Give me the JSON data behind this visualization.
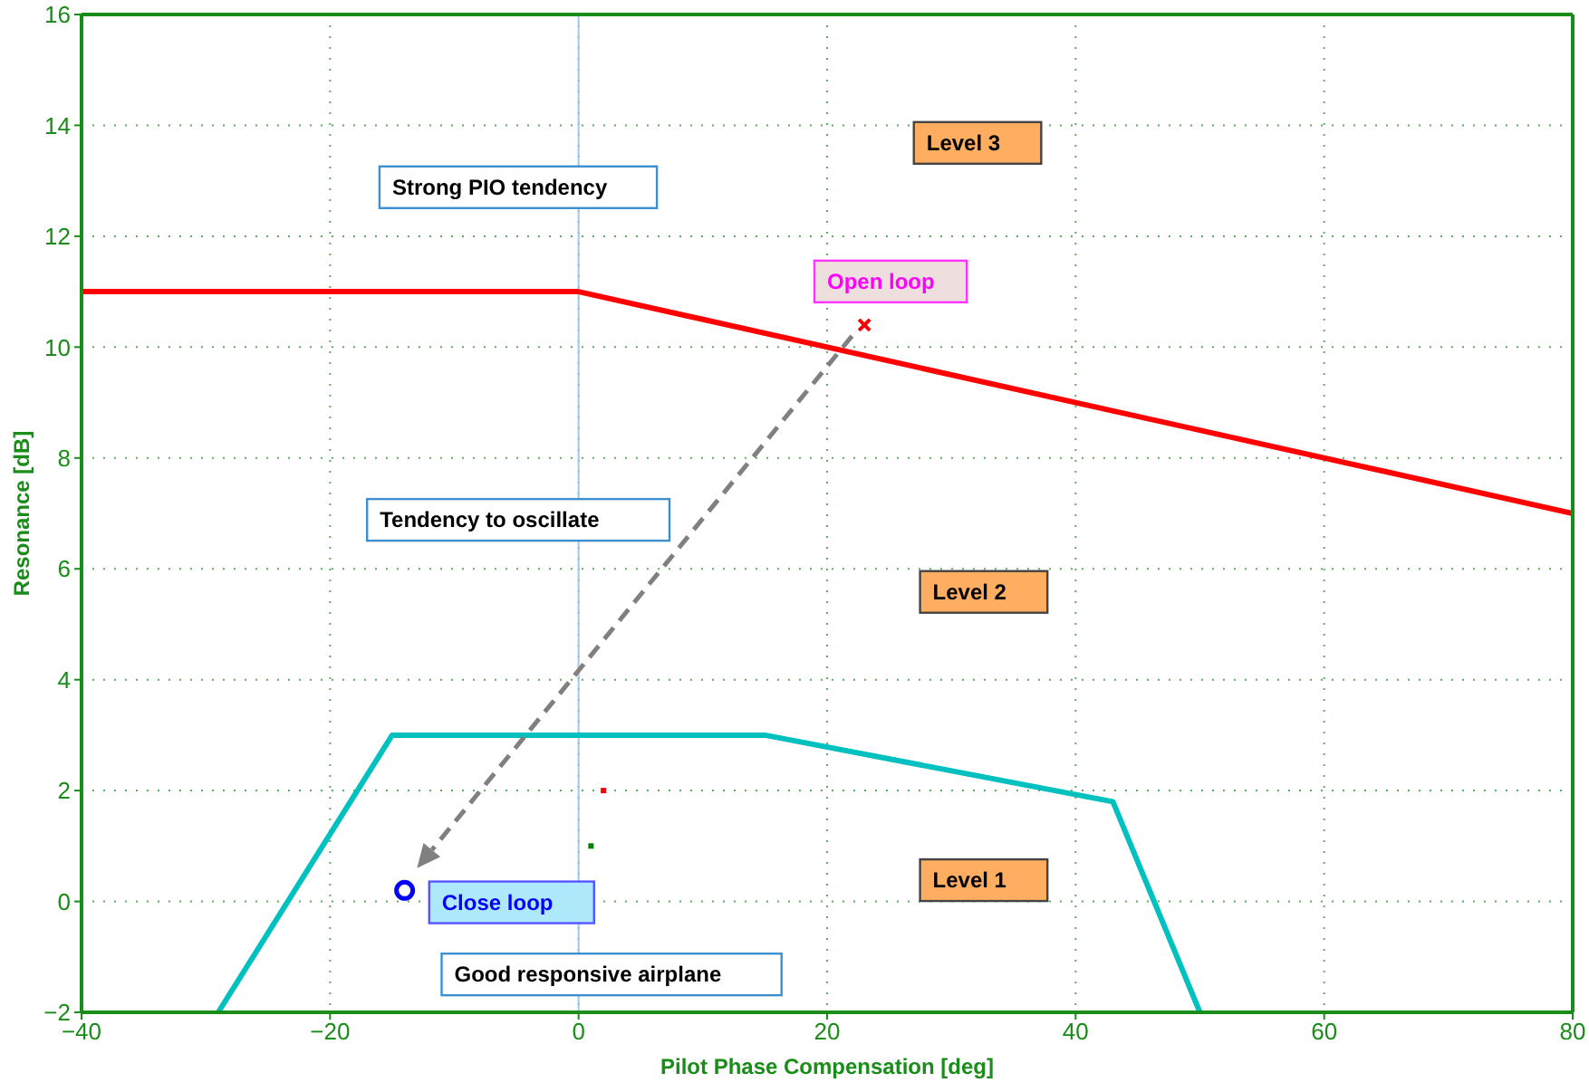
{
  "chart_data": {
    "type": "line",
    "xlabel": "Pilot Phase Compensation [deg]",
    "ylabel": "Resonance [dB]",
    "xlim": [
      -40,
      80
    ],
    "xticks": [
      -40,
      -20,
      0,
      20,
      40,
      60,
      80
    ],
    "ylim": [
      -2,
      16
    ],
    "yticks": [
      -2,
      0,
      2,
      4,
      6,
      8,
      10,
      12,
      14,
      16
    ],
    "grid": true,
    "series": [
      {
        "color": "#ff0000",
        "x": [
          -40,
          0,
          80
        ],
        "values": [
          11,
          11,
          7
        ],
        "marker": "none",
        "line_style": "solid"
      },
      {
        "color": "#00c0c0",
        "x": [
          -29,
          -15,
          15,
          43,
          50
        ],
        "values": [
          -2,
          3,
          3,
          1.8,
          -2
        ],
        "marker": "none",
        "line_style": "solid"
      },
      {
        "type": "scatter",
        "color": "#ff0000",
        "x": [
          23
        ],
        "values": [
          10.4
        ],
        "marker": "cross"
      },
      {
        "type": "scatter",
        "color": "#0000ff",
        "x": [
          -14
        ],
        "values": [
          0.2
        ],
        "marker": "circle"
      },
      {
        "type": "scatter",
        "color": "#ff0000",
        "x": [
          2
        ],
        "values": [
          2
        ],
        "marker": "square"
      },
      {
        "type": "scatter",
        "color": "#008000",
        "x": [
          1
        ],
        "values": [
          1
        ],
        "marker": "square"
      }
    ],
    "ref_lines": [
      {
        "axis": "x",
        "value": 0,
        "color": "#a0c8e8"
      }
    ],
    "annotations": [
      "Strong PIO tendency",
      "Level 3",
      "Open loop",
      "Tendency to oscillate",
      "Level 2",
      "Level 1",
      "Close loop",
      "Good responsive airplane"
    ]
  }
}
